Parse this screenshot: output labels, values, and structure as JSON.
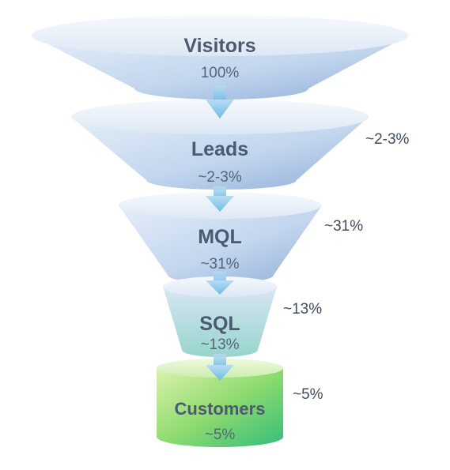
{
  "stages": [
    {
      "name": "Visitors",
      "value": "100%",
      "side_label": ""
    },
    {
      "name": "Leads",
      "value": "~2-3%",
      "side_label": "~2-3%"
    },
    {
      "name": "MQL",
      "value": "~31%",
      "side_label": "~31%"
    },
    {
      "name": "SQL",
      "value": "~13%",
      "side_label": "~13%"
    },
    {
      "name": "Customers",
      "value": "~5%",
      "side_label": "~5%"
    }
  ],
  "colors": {
    "stage_top": "#eef4fb",
    "stage_body_light": "#dbe8f6",
    "stage_body_dark": "#8fb0da",
    "sql_bottom": "#9fd6cf",
    "customers_light": "#d5efa5",
    "customers_dark": "#3cc07a",
    "arrow": "#7ec3e8",
    "text": "#4c5a70"
  }
}
